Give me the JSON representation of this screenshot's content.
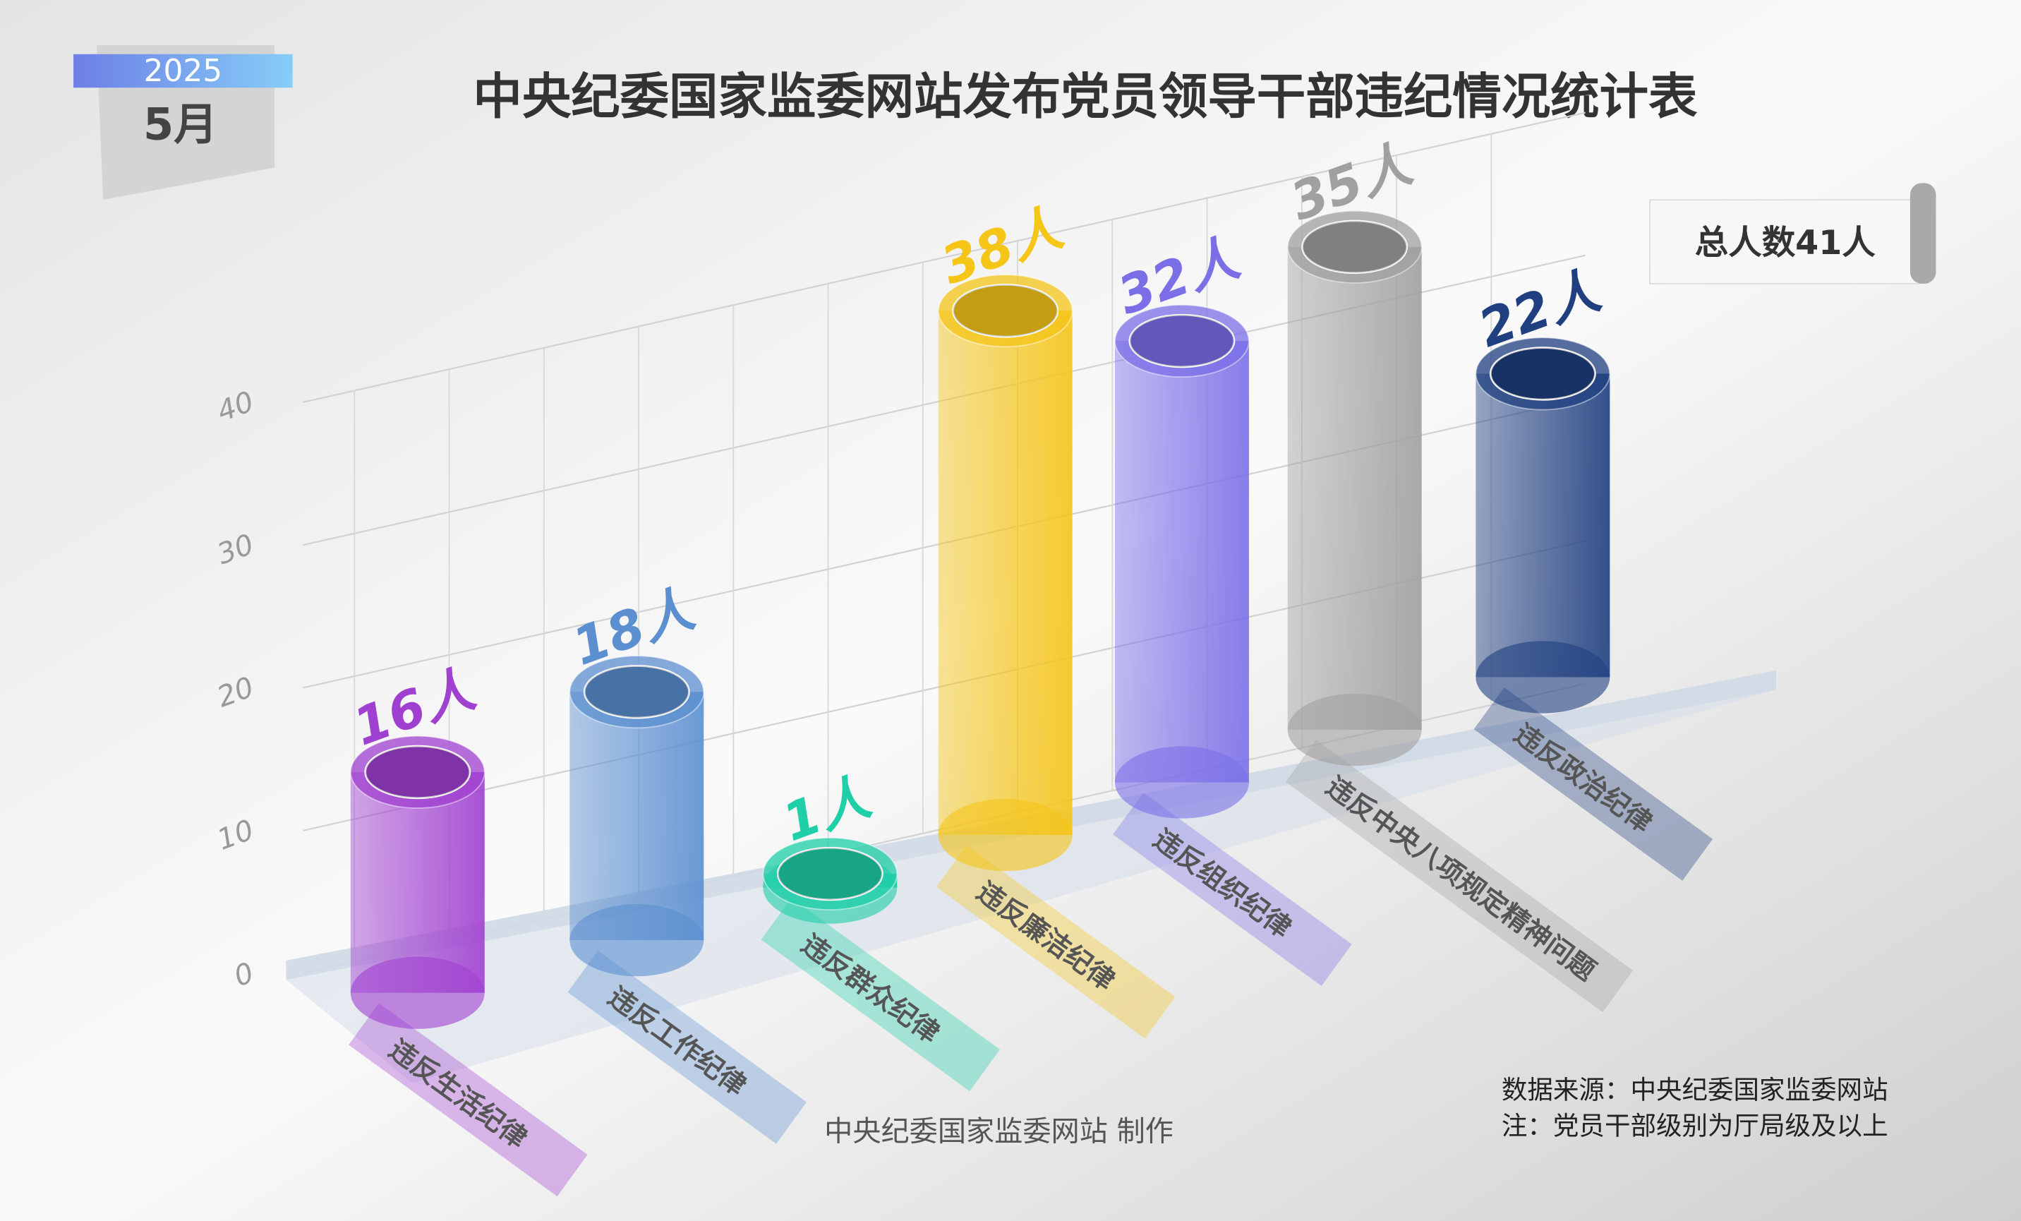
{
  "header": {
    "year": "2025",
    "month": "5月",
    "title": "中央纪委国家监委网站发布党员领导干部违纪情况统计表"
  },
  "total_badge": "总人数41人",
  "footer": {
    "maker": "中央纪委国家监委网站 制作",
    "source": "数据来源：中央纪委国家监委网站",
    "note": "注：党员干部级别为厅局级及以上"
  },
  "chart_data": {
    "type": "bar",
    "style": "3d-cylinder",
    "categories": [
      "违反生活纪律",
      "违反工作纪律",
      "违反群众纪律",
      "违反廉洁纪律",
      "违反组织纪律",
      "违反中央八项规定精神问题",
      "违反政治纪律"
    ],
    "values": [
      16,
      18,
      1,
      38,
      32,
      35,
      22
    ],
    "data_labels": [
      "16人",
      "18人",
      "1人",
      "38人",
      "32人",
      "35人",
      "22人"
    ],
    "colors": [
      "#a040d0",
      "#5b8fd0",
      "#1ecfa8",
      "#f5c518",
      "#7b6fe8",
      "#a0a0a0",
      "#1f3f80"
    ],
    "ylim": [
      0,
      40
    ],
    "yticks": [
      "0",
      "10",
      "20",
      "30",
      "40"
    ],
    "grid": true
  }
}
